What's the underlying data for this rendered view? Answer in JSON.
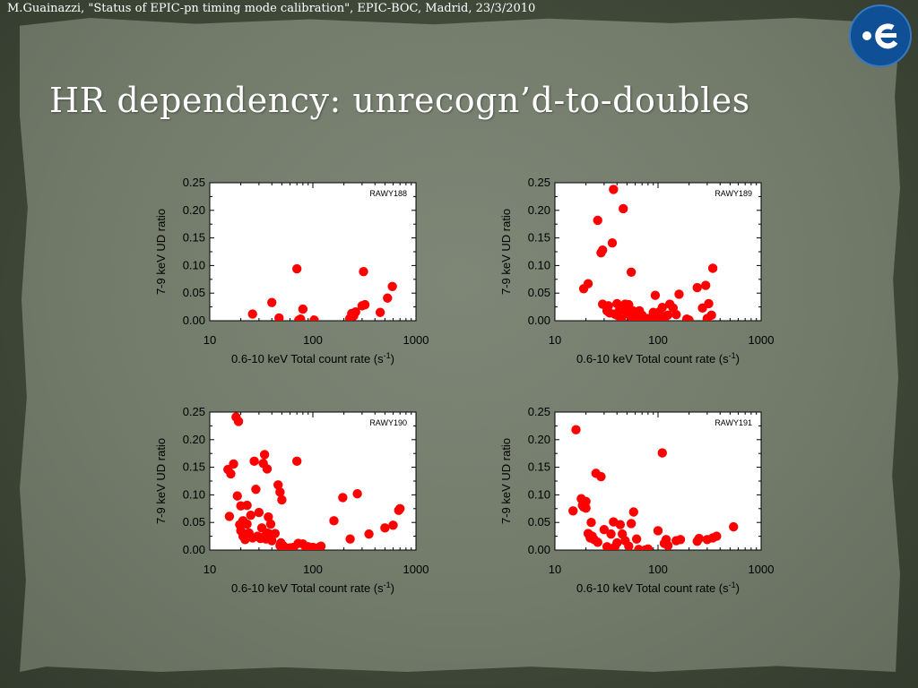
{
  "header": {
    "caption": "M.Guainazzi, \"Status of EPIC-pn timing mode calibration\", EPIC-BOC, Madrid, 23/3/2010"
  },
  "slide": {
    "title": "HR dependency: unrecogn’d-to-doubles"
  },
  "logo": {
    "icon": "esa-logo-icon"
  },
  "colors": {
    "point": "#ff0000",
    "background_outer": "#3c4736",
    "paper": "#767e6f",
    "title": "#ffffff"
  },
  "chart_data": [
    {
      "type": "scatter",
      "label": "RAWY188",
      "xlabel": "0.6-10 keV Total count rate (s",
      "xlabel_sup": "-1",
      "xlabel_close": ")",
      "ylabel": "7-9 keV UD ratio",
      "xscale": "log",
      "xlim": [
        10,
        1000
      ],
      "ylim": [
        0,
        0.25
      ],
      "xticks": [
        10,
        100,
        1000
      ],
      "xtick_labels": [
        "10",
        "100",
        "1000"
      ],
      "yticks": [
        0,
        0.05,
        0.1,
        0.15,
        0.2,
        0.25
      ],
      "ytick_labels": [
        "0.00",
        "0.05",
        "0.10",
        "0.15",
        "0.20",
        "0.25"
      ],
      "points": [
        [
          26,
          0.012
        ],
        [
          40,
          0.033
        ],
        [
          47,
          0.005
        ],
        [
          70,
          0.094
        ],
        [
          73,
          0.001
        ],
        [
          76,
          0.003
        ],
        [
          80,
          0.021
        ],
        [
          103,
          0.001
        ],
        [
          228,
          0.004
        ],
        [
          238,
          0.013
        ],
        [
          249,
          0.009
        ],
        [
          260,
          0.016
        ],
        [
          300,
          0.027
        ],
        [
          310,
          0.089
        ],
        [
          320,
          0.029
        ],
        [
          450,
          0.015
        ],
        [
          530,
          0.041
        ],
        [
          590,
          0.062
        ]
      ]
    },
    {
      "type": "scatter",
      "label": "RAWY189",
      "xlabel": "0.6-10 keV Total count rate (s",
      "xlabel_sup": "-1",
      "xlabel_close": ")",
      "ylabel": "7-9 keV UD ratio",
      "xscale": "log",
      "xlim": [
        10,
        1000
      ],
      "ylim": [
        0,
        0.25
      ],
      "xticks": [
        10,
        100,
        1000
      ],
      "xtick_labels": [
        "10",
        "100",
        "1000"
      ],
      "yticks": [
        0,
        0.05,
        0.1,
        0.15,
        0.2,
        0.25
      ],
      "ytick_labels": [
        "0.00",
        "0.05",
        "0.10",
        "0.15",
        "0.20",
        "0.25"
      ],
      "points": [
        [
          19,
          0.058
        ],
        [
          21,
          0.067
        ],
        [
          26,
          0.182
        ],
        [
          28,
          0.123
        ],
        [
          29,
          0.128
        ],
        [
          29,
          0.03
        ],
        [
          32,
          0.018
        ],
        [
          33,
          0.027
        ],
        [
          34,
          0.014
        ],
        [
          36,
          0.141
        ],
        [
          37,
          0.238
        ],
        [
          38,
          0.012
        ],
        [
          40,
          0.01
        ],
        [
          40,
          0.031
        ],
        [
          42,
          0.018
        ],
        [
          44,
          0.003
        ],
        [
          45,
          0.02
        ],
        [
          46,
          0.203
        ],
        [
          48,
          0.03
        ],
        [
          50,
          0.013
        ],
        [
          52,
          0.029
        ],
        [
          55,
          0.006
        ],
        [
          55,
          0.088
        ],
        [
          57,
          0.018
        ],
        [
          60,
          0.012
        ],
        [
          63,
          0.002
        ],
        [
          66,
          0.018
        ],
        [
          70,
          0.01
        ],
        [
          74,
          0.001
        ],
        [
          80,
          0.004
        ],
        [
          85,
          0.003
        ],
        [
          90,
          0.015
        ],
        [
          94,
          0.046
        ],
        [
          100,
          0.003
        ],
        [
          103,
          0.016
        ],
        [
          110,
          0.024
        ],
        [
          115,
          0.004
        ],
        [
          124,
          0.01
        ],
        [
          130,
          0.03
        ],
        [
          140,
          0.023
        ],
        [
          150,
          0.011
        ],
        [
          160,
          0.048
        ],
        [
          190,
          0.003
        ],
        [
          200,
          0.001
        ],
        [
          240,
          0.06
        ],
        [
          270,
          0.023
        ],
        [
          290,
          0.064
        ],
        [
          300,
          0.004
        ],
        [
          310,
          0.031
        ],
        [
          330,
          0.01
        ],
        [
          340,
          0.095
        ]
      ]
    },
    {
      "type": "scatter",
      "label": "RAWY190",
      "xlabel": "0.6-10 keV Total count rate (s",
      "xlabel_sup": "-1",
      "xlabel_close": ")",
      "ylabel": "7-9 keV UD ratio",
      "xscale": "log",
      "xlim": [
        10,
        1000
      ],
      "ylim": [
        0,
        0.25
      ],
      "xticks": [
        10,
        100,
        1000
      ],
      "xtick_labels": [
        "10",
        "100",
        "1000"
      ],
      "yticks": [
        0,
        0.05,
        0.1,
        0.15,
        0.2,
        0.25
      ],
      "ytick_labels": [
        "0.00",
        "0.05",
        "0.10",
        "0.15",
        "0.20",
        "0.25"
      ],
      "points": [
        [
          15,
          0.146
        ],
        [
          15.5,
          0.061
        ],
        [
          16,
          0.138
        ],
        [
          17,
          0.156
        ],
        [
          18,
          0.241
        ],
        [
          18.5,
          0.098
        ],
        [
          19,
          0.233
        ],
        [
          19.5,
          0.046
        ],
        [
          20,
          0.08
        ],
        [
          20,
          0.035
        ],
        [
          21,
          0.053
        ],
        [
          21,
          0.025
        ],
        [
          22,
          0.029
        ],
        [
          22,
          0.019
        ],
        [
          23,
          0.081
        ],
        [
          23,
          0.047
        ],
        [
          24,
          0.031
        ],
        [
          25,
          0.063
        ],
        [
          26,
          0.022
        ],
        [
          27,
          0.161
        ],
        [
          28,
          0.11
        ],
        [
          29,
          0.025
        ],
        [
          30,
          0.068
        ],
        [
          31,
          0.021
        ],
        [
          32,
          0.04
        ],
        [
          33,
          0.023
        ],
        [
          33,
          0.157
        ],
        [
          34,
          0.173
        ],
        [
          35,
          0.02
        ],
        [
          36,
          0.031
        ],
        [
          36,
          0.147
        ],
        [
          37,
          0.06
        ],
        [
          38,
          0.029
        ],
        [
          39,
          0.047
        ],
        [
          40,
          0.017
        ],
        [
          43,
          0.03
        ],
        [
          46,
          0.118
        ],
        [
          48,
          0.105
        ],
        [
          48,
          0.008
        ],
        [
          49,
          0.013
        ],
        [
          50,
          0.091
        ],
        [
          52,
          0.007
        ],
        [
          53,
          0.0
        ],
        [
          55,
          0.003
        ],
        [
          60,
          0.004
        ],
        [
          65,
          0.005
        ],
        [
          70,
          0.161
        ],
        [
          72,
          0.012
        ],
        [
          80,
          0.011
        ],
        [
          86,
          0.002
        ],
        [
          90,
          0.006
        ],
        [
          100,
          0.005
        ],
        [
          115,
          0.005
        ],
        [
          120,
          0.007
        ],
        [
          160,
          0.053
        ],
        [
          195,
          0.095
        ],
        [
          230,
          0.02
        ],
        [
          270,
          0.102
        ],
        [
          350,
          0.029
        ],
        [
          500,
          0.04
        ],
        [
          600,
          0.045
        ],
        [
          680,
          0.072
        ],
        [
          700,
          0.075
        ]
      ]
    },
    {
      "type": "scatter",
      "label": "RAWY191",
      "xlabel": "0.6-10 keV Total count rate (s",
      "xlabel_sup": "-1",
      "xlabel_close": ")",
      "ylabel": "7-9 keV UD ratio",
      "xscale": "log",
      "xlim": [
        10,
        1000
      ],
      "ylim": [
        0,
        0.25
      ],
      "xticks": [
        10,
        100,
        1000
      ],
      "xtick_labels": [
        "10",
        "100",
        "1000"
      ],
      "yticks": [
        0,
        0.05,
        0.1,
        0.15,
        0.2,
        0.25
      ],
      "ytick_labels": [
        "0.00",
        "0.05",
        "0.10",
        "0.15",
        "0.20",
        "0.25"
      ],
      "points": [
        [
          15,
          0.071
        ],
        [
          16,
          0.218
        ],
        [
          18,
          0.093
        ],
        [
          18.5,
          0.081
        ],
        [
          19,
          0.078
        ],
        [
          20,
          0.088
        ],
        [
          20,
          0.076
        ],
        [
          21,
          0.03
        ],
        [
          21.5,
          0.028
        ],
        [
          22,
          0.022
        ],
        [
          22.5,
          0.05
        ],
        [
          23,
          0.025
        ],
        [
          24,
          0.019
        ],
        [
          25,
          0.139
        ],
        [
          26,
          0.014
        ],
        [
          28,
          0.133
        ],
        [
          30,
          0.037
        ],
        [
          32,
          0.006
        ],
        [
          35,
          0.029
        ],
        [
          37,
          0.051
        ],
        [
          38,
          0.005
        ],
        [
          40,
          0.013
        ],
        [
          43,
          0.046
        ],
        [
          45,
          0.029
        ],
        [
          48,
          0.017
        ],
        [
          52,
          0.007
        ],
        [
          55,
          0.048
        ],
        [
          58,
          0.069
        ],
        [
          62,
          0.02
        ],
        [
          65,
          0.001
        ],
        [
          75,
          0.0
        ],
        [
          80,
          0.002
        ],
        [
          100,
          0.035
        ],
        [
          110,
          0.176
        ],
        [
          115,
          0.012
        ],
        [
          120,
          0.019
        ],
        [
          125,
          0.008
        ],
        [
          150,
          0.017
        ],
        [
          165,
          0.019
        ],
        [
          240,
          0.016
        ],
        [
          250,
          0.021
        ],
        [
          300,
          0.019
        ],
        [
          340,
          0.022
        ],
        [
          370,
          0.025
        ],
        [
          540,
          0.042
        ]
      ]
    }
  ]
}
